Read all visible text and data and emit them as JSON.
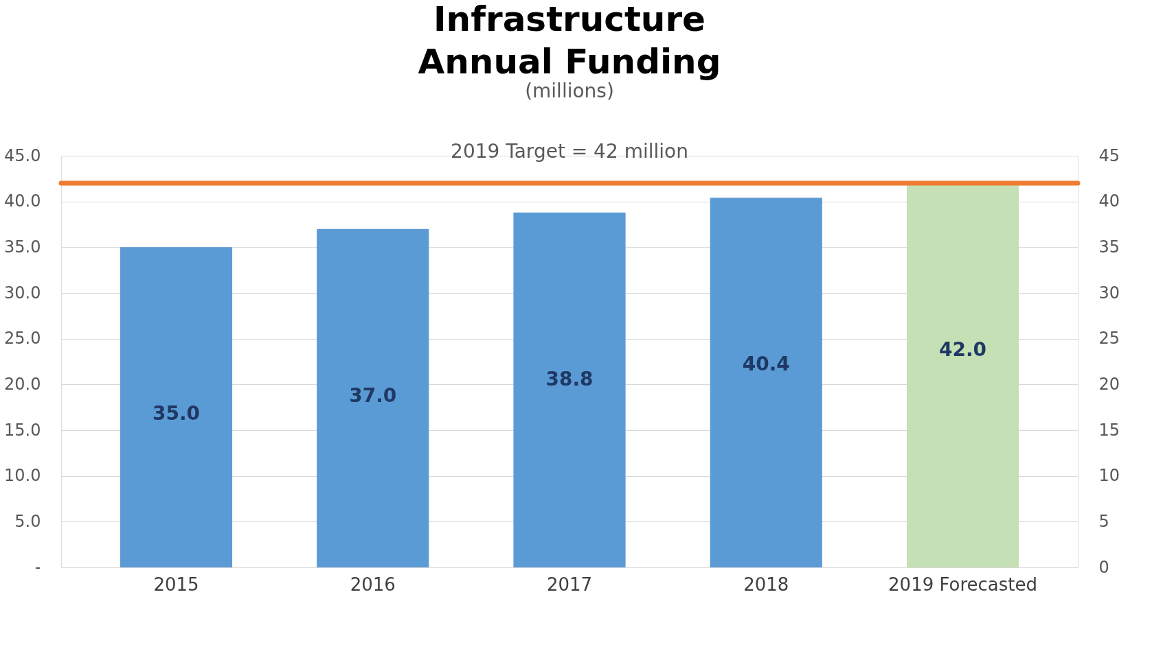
{
  "chart_data": {
    "type": "bar",
    "title": "Infrastructure\nAnnual Funding",
    "subtitle": "(millions)",
    "categories": [
      "2015",
      "2016",
      "2017",
      "2018",
      "2019 Forecasted"
    ],
    "values": [
      35.0,
      37.0,
      38.8,
      40.4,
      42.0
    ],
    "colors": [
      "#5b9bd5",
      "#5b9bd5",
      "#5b9bd5",
      "#5b9bd5",
      "#c5e0b4"
    ],
    "value_labels": [
      "35.0",
      "37.0",
      "38.8",
      "40.4",
      "42.0"
    ],
    "ylim": [
      0,
      45
    ],
    "yticks": [
      {
        "value": 0,
        "label": "-"
      },
      {
        "value": 5,
        "label": "5.0"
      },
      {
        "value": 10,
        "label": "10.0"
      },
      {
        "value": 15,
        "label": "15.0"
      },
      {
        "value": 20,
        "label": "20.0"
      },
      {
        "value": 25,
        "label": "25.0"
      },
      {
        "value": 30,
        "label": "30.0"
      },
      {
        "value": 35,
        "label": "35.0"
      },
      {
        "value": 40,
        "label": "40.0"
      },
      {
        "value": 45,
        "label": "45.0"
      }
    ],
    "y2lim": [
      0,
      45
    ],
    "y2ticks": [
      0,
      5,
      10,
      15,
      20,
      25,
      30,
      35,
      40,
      45
    ],
    "ref_lines": [
      {
        "axis": "y",
        "value": 42,
        "label": "2019 Target = 42 million",
        "color": "#ed7d31"
      }
    ],
    "grid": "y"
  }
}
